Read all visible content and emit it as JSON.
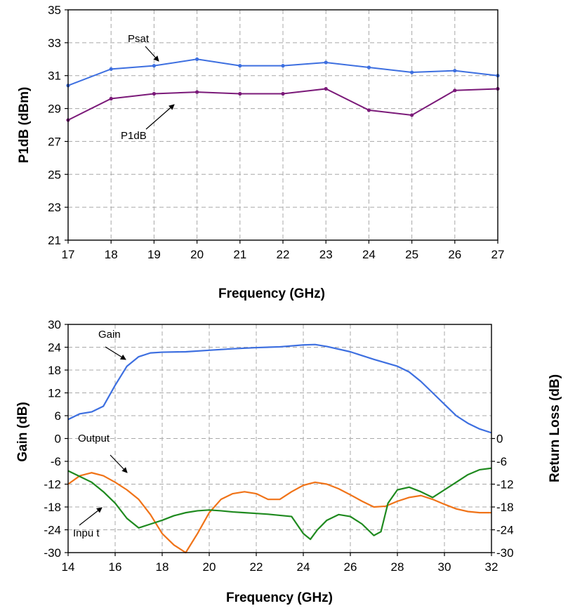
{
  "chart_data": [
    {
      "type": "line",
      "xlabel": "Frequency (GHz)",
      "ylabel": "P1dB (dBm)",
      "xlim": [
        17,
        27
      ],
      "ylim": [
        21,
        35
      ],
      "x_ticks": [
        "17",
        "18",
        "19",
        "20",
        "21",
        "22",
        "23",
        "24",
        "25",
        "26",
        "27"
      ],
      "y_ticks": [
        "21",
        "23",
        "25",
        "27",
        "29",
        "31",
        "33",
        "35"
      ],
      "grid": true,
      "x": [
        17,
        18,
        19,
        20,
        21,
        22,
        23,
        24,
        25,
        26,
        27
      ],
      "series": [
        {
          "name": "Psat",
          "color": "#3d6fe0",
          "values": [
            30.4,
            31.4,
            31.6,
            32.0,
            31.6,
            31.6,
            31.8,
            31.5,
            31.2,
            31.3,
            31.0
          ]
        },
        {
          "name": "P1dB",
          "color": "#7b1a79",
          "values": [
            28.3,
            29.6,
            29.9,
            30.0,
            29.9,
            29.9,
            30.2,
            28.9,
            28.6,
            30.1,
            30.2
          ]
        }
      ],
      "annotations": [
        "Psat",
        "P1dB"
      ]
    },
    {
      "type": "line",
      "xlabel": "Frequency (GHz)",
      "ylabel": "Gain (dB)",
      "y2label": "Return Loss (dB)",
      "xlim": [
        14,
        32
      ],
      "ylim": [
        -30,
        30
      ],
      "x_ticks": [
        "14",
        "16",
        "18",
        "20",
        "22",
        "24",
        "26",
        "28",
        "30",
        "32"
      ],
      "y_ticks": [
        "-30",
        "-24",
        "-18",
        "-12",
        "-6",
        "0",
        "6",
        "12",
        "18",
        "24",
        "30"
      ],
      "y2_ticks": [
        "-30",
        "-24",
        "-18",
        "-12",
        "-6",
        "0"
      ],
      "grid": true,
      "series": [
        {
          "name": "Gain",
          "color": "#3d6fe0",
          "x": [
            14,
            14.5,
            15,
            15.5,
            16,
            16.5,
            17,
            17.5,
            18,
            19,
            20,
            21,
            22,
            23,
            24,
            24.5,
            25,
            26,
            27,
            28,
            28.5,
            29,
            29.5,
            30,
            30.5,
            31,
            31.5,
            32
          ],
          "y": [
            5,
            6.5,
            7,
            8.5,
            14,
            19,
            21.5,
            22.5,
            22.7,
            22.8,
            23.2,
            23.6,
            23.9,
            24.1,
            24.6,
            24.7,
            24.2,
            22.8,
            20.8,
            19,
            17.5,
            15,
            12,
            9,
            6,
            4,
            2.5,
            1.5
          ]
        },
        {
          "name": "Output",
          "color": "#f07318",
          "x": [
            14,
            14.5,
            15,
            15.5,
            16,
            16.5,
            17,
            17.5,
            18,
            18.5,
            19,
            19.5,
            20,
            20.5,
            21,
            21.5,
            22,
            22.5,
            23,
            23.5,
            24,
            24.5,
            25,
            25.5,
            26,
            26.5,
            27,
            27.5,
            28,
            28.5,
            29,
            29.5,
            30,
            30.5,
            31,
            31.5,
            32
          ],
          "y": [
            -12,
            -9.8,
            -9,
            -9.8,
            -11.5,
            -13.5,
            -16,
            -20,
            -25,
            -28,
            -30,
            -25,
            -19.5,
            -16,
            -14.5,
            -14,
            -14.5,
            -16,
            -16,
            -14,
            -12.3,
            -11.5,
            -12,
            -13.2,
            -14.8,
            -16.5,
            -18,
            -17.8,
            -16.5,
            -15.5,
            -15,
            -16,
            -17.3,
            -18.5,
            -19.2,
            -19.5,
            -19.5
          ]
        },
        {
          "name": "Input",
          "color": "#1f8a1f",
          "x": [
            14,
            14.5,
            15,
            15.5,
            16,
            16.5,
            17,
            17.5,
            18,
            18.5,
            19,
            19.5,
            20,
            20.5,
            21,
            21.5,
            22,
            22.5,
            23,
            23.5,
            24,
            24.3,
            24.6,
            25,
            25.5,
            26,
            26.5,
            27,
            27.3,
            27.6,
            28,
            28.5,
            29,
            29.5,
            30,
            30.5,
            31,
            31.5,
            32
          ],
          "y": [
            -8.5,
            -10,
            -11.5,
            -14,
            -17,
            -21,
            -23.5,
            -22.5,
            -21.5,
            -20.3,
            -19.5,
            -19,
            -18.8,
            -19,
            -19.3,
            -19.5,
            -19.7,
            -19.9,
            -20.2,
            -20.5,
            -25,
            -26.5,
            -24,
            -21.5,
            -20,
            -20.5,
            -22.5,
            -25.5,
            -24.5,
            -17,
            -13.5,
            -12.8,
            -14,
            -15.5,
            -13.5,
            -11.5,
            -9.5,
            -8.2,
            -7.8
          ]
        }
      ],
      "annotations": [
        "Gain",
        "Output",
        "Inpu t"
      ]
    }
  ]
}
